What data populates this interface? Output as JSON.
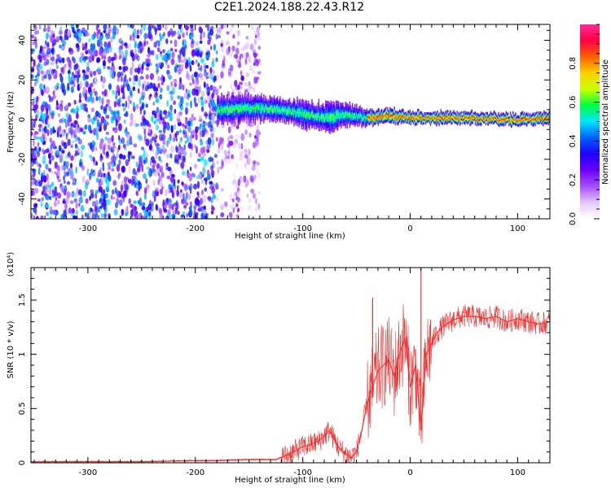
{
  "title": "C2E1.2024.188.22.43.R12",
  "chart_data": [
    {
      "type": "heatmap",
      "name": "spectrogram",
      "xlabel": "Height of straight line (km)",
      "ylabel": "Frequency (Hz)",
      "xlim": [
        -353,
        130
      ],
      "ylim": [
        -50,
        48
      ],
      "xticks": [
        -300,
        -200,
        -100,
        0,
        100
      ],
      "yticks": [
        -40,
        -20,
        0,
        20,
        40
      ],
      "colorbar": {
        "label": "Normalized spectral amplitude",
        "range": [
          0,
          1
        ],
        "ticks": [
          0.0,
          0.2,
          0.4,
          0.6,
          0.8
        ],
        "colors": [
          "#ffffff",
          "#e4c8ff",
          "#a64dff",
          "#6a00ff",
          "#2000ff",
          "#0060ff",
          "#00e5ff",
          "#00ff40",
          "#c8ff00",
          "#ffd000",
          "#ff6000",
          "#ff0040",
          "#ff2a9a"
        ]
      },
      "regions": [
        {
          "x": [
            -353,
            -180
          ],
          "y": [
            -50,
            48
          ],
          "level": 0.3,
          "pattern": "dense scattered noise"
        },
        {
          "x": [
            -180,
            -140
          ],
          "y": [
            -50,
            48
          ],
          "level": 0.15,
          "pattern": "sparse scattered noise"
        },
        {
          "x": [
            -180,
            130
          ],
          "y": [
            -8,
            12
          ],
          "level": 0.9,
          "pattern": "narrow signal band centered near 0 Hz"
        }
      ],
      "band_center": [
        [
          -180,
          5
        ],
        [
          -150,
          6
        ],
        [
          -120,
          5
        ],
        [
          -100,
          3
        ],
        [
          -80,
          1
        ],
        [
          -60,
          3
        ],
        [
          -40,
          1
        ],
        [
          -20,
          2
        ],
        [
          0,
          1
        ],
        [
          50,
          1
        ],
        [
          100,
          0
        ],
        [
          130,
          1
        ]
      ],
      "band_halfwidth": [
        [
          -180,
          7
        ],
        [
          -120,
          6
        ],
        [
          -80,
          7
        ],
        [
          -60,
          6
        ],
        [
          -40,
          4
        ],
        [
          0,
          3
        ],
        [
          130,
          3
        ]
      ]
    },
    {
      "type": "line",
      "name": "snr",
      "xlabel": "Height of straight line (km)",
      "ylabel": "SNR (10 * v/v)",
      "y_multiplier": "(x10⁴)",
      "xlim": [
        -353,
        130
      ],
      "ylim": [
        0,
        1.8
      ],
      "xticks": [
        -300,
        -200,
        -100,
        0,
        100
      ],
      "yticks": [
        0.0,
        0.5,
        1.0,
        1.5
      ],
      "series_color": "#ee3333",
      "x": [
        -353,
        -300,
        -250,
        -200,
        -180,
        -150,
        -125,
        -115,
        -105,
        -100,
        -95,
        -90,
        -85,
        -80,
        -75,
        -70,
        -65,
        -60,
        -55,
        -50,
        -45,
        -40,
        -35,
        -30,
        -25,
        -20,
        -15,
        -10,
        -5,
        0,
        5,
        10,
        15,
        20,
        25,
        30,
        40,
        50,
        60,
        70,
        80,
        90,
        100,
        110,
        120,
        130
      ],
      "y": [
        0.01,
        0.01,
        0.01,
        0.02,
        0.02,
        0.03,
        0.03,
        0.07,
        0.12,
        0.15,
        0.16,
        0.18,
        0.2,
        0.25,
        0.3,
        0.2,
        0.12,
        0.08,
        0.05,
        0.1,
        0.3,
        0.55,
        0.7,
        0.85,
        0.9,
        0.95,
        0.8,
        1.0,
        1.15,
        0.7,
        0.9,
        0.3,
        1.0,
        1.1,
        1.2,
        1.25,
        1.32,
        1.35,
        1.35,
        1.33,
        1.35,
        1.3,
        1.33,
        1.3,
        1.28,
        1.3
      ],
      "spikes": [
        {
          "x": -35,
          "y": 1.52
        },
        {
          "x": 10,
          "y": 1.82
        }
      ]
    }
  ]
}
